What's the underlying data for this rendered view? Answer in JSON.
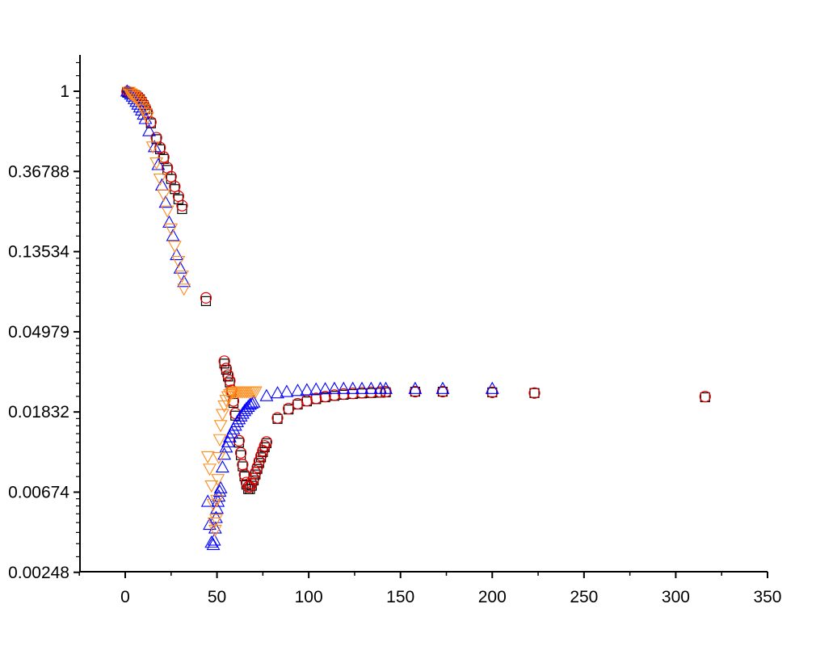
{
  "chart_data": {
    "type": "scatter",
    "xlim": [
      -25,
      350
    ],
    "ylim": [
      0.00248,
      1.8
    ],
    "yscale": "log-e",
    "grid": false,
    "x_ticks": [
      0,
      50,
      100,
      150,
      200,
      250,
      300,
      350
    ],
    "x_tick_labels": [
      "0",
      "50",
      "100",
      "150",
      "200",
      "250",
      "300",
      "350"
    ],
    "y_ticks": [
      0.00248,
      0.00674,
      0.01832,
      0.04979,
      0.13534,
      0.36788,
      1
    ],
    "y_tick_labels": [
      "0.00248",
      "0.00674",
      "0.01832",
      "0.04979",
      "0.13534",
      "0.36788",
      "1"
    ],
    "colors": {
      "black": "#000000",
      "red": "#e00000",
      "blue": "#0000ff",
      "orange": "#ff8c1a"
    },
    "series": [
      {
        "marker": "square",
        "color": "#000000",
        "x": [
          1,
          2,
          3,
          4,
          5,
          6,
          7,
          8,
          9,
          10,
          11,
          12,
          14,
          17,
          19,
          21,
          23,
          25,
          27,
          29,
          31,
          44,
          54,
          55,
          56,
          57,
          58,
          59,
          60,
          62,
          63,
          64,
          65,
          66,
          67,
          68,
          69,
          70,
          71,
          72,
          73,
          74,
          75,
          76,
          77,
          83,
          89,
          94,
          99,
          104,
          109,
          114,
          119,
          124,
          129,
          134,
          139,
          142,
          158,
          173,
          200,
          223,
          316
        ],
        "y": [
          0.99,
          0.985,
          0.975,
          0.965,
          0.955,
          0.945,
          0.925,
          0.905,
          0.875,
          0.84,
          0.8,
          0.76,
          0.67,
          0.55,
          0.485,
          0.43,
          0.375,
          0.335,
          0.295,
          0.26,
          0.23,
          0.073,
          0.0335,
          0.031,
          0.0285,
          0.0265,
          0.0235,
          0.0205,
          0.0175,
          0.0125,
          0.0107,
          0.0093,
          0.0082,
          0.0074,
          0.007,
          0.007,
          0.0073,
          0.0078,
          0.0084,
          0.009,
          0.0097,
          0.0104,
          0.0111,
          0.0118,
          0.0124,
          0.0168,
          0.0189,
          0.0201,
          0.0209,
          0.0215,
          0.022,
          0.0224,
          0.0227,
          0.0229,
          0.0231,
          0.0232,
          0.0233,
          0.0234,
          0.0236,
          0.0236,
          0.0234,
          0.0232,
          0.022
        ]
      },
      {
        "marker": "circle",
        "color": "#e00000",
        "x": [
          1,
          2,
          3,
          4,
          5,
          6,
          7,
          8,
          9,
          10,
          11,
          12,
          14,
          17,
          19,
          21,
          23,
          25,
          27,
          29,
          31,
          44,
          54,
          55,
          56,
          57,
          58,
          59,
          60,
          62,
          63,
          64,
          65,
          66,
          67,
          68,
          69,
          70,
          71,
          72,
          73,
          74,
          75,
          76,
          77,
          83,
          89,
          94,
          99,
          104,
          109,
          114,
          119,
          124,
          129,
          134,
          139,
          142,
          158,
          173,
          200,
          223,
          316
        ],
        "y": [
          0.995,
          0.99,
          0.98,
          0.97,
          0.96,
          0.95,
          0.93,
          0.91,
          0.88,
          0.85,
          0.81,
          0.77,
          0.68,
          0.56,
          0.495,
          0.44,
          0.385,
          0.345,
          0.305,
          0.27,
          0.24,
          0.076,
          0.0345,
          0.0315,
          0.029,
          0.027,
          0.024,
          0.021,
          0.018,
          0.0128,
          0.011,
          0.0095,
          0.0084,
          0.0076,
          0.0072,
          0.0072,
          0.0075,
          0.008,
          0.0086,
          0.0092,
          0.0099,
          0.0106,
          0.0113,
          0.012,
          0.0126,
          0.017,
          0.0191,
          0.0203,
          0.0211,
          0.0217,
          0.0222,
          0.0226,
          0.0229,
          0.0231,
          0.0233,
          0.0234,
          0.0235,
          0.0236,
          0.0236,
          0.0236,
          0.0234,
          0.0232,
          0.0222
        ]
      },
      {
        "marker": "triangle-up",
        "color": "#0000ff",
        "x": [
          1,
          2,
          3,
          4,
          5,
          6,
          7,
          8,
          9,
          10,
          11,
          13,
          16,
          18,
          20,
          22,
          24,
          26,
          28,
          30,
          32,
          45,
          46,
          47,
          48,
          48.5,
          49,
          49.5,
          50,
          50.5,
          51,
          51.5,
          52,
          53,
          54,
          55,
          56,
          57,
          58,
          59,
          60,
          61,
          62,
          63,
          64,
          65,
          66,
          67,
          68,
          69,
          70,
          77,
          83,
          88,
          94,
          99,
          104,
          109,
          114,
          119,
          124,
          129,
          134,
          139,
          142,
          158,
          173,
          200
        ],
        "y": [
          1.0,
          0.985,
          0.965,
          0.94,
          0.91,
          0.88,
          0.85,
          0.82,
          0.79,
          0.75,
          0.71,
          0.61,
          0.5,
          0.4,
          0.31,
          0.25,
          0.195,
          0.165,
          0.13,
          0.11,
          0.093,
          0.006,
          0.0045,
          0.0036,
          0.0035,
          0.0037,
          0.0043,
          0.0049,
          0.0055,
          0.006,
          0.0064,
          0.0068,
          0.0071,
          0.0092,
          0.0108,
          0.0118,
          0.0126,
          0.0134,
          0.0141,
          0.0148,
          0.0155,
          0.0162,
          0.0168,
          0.0174,
          0.018,
          0.0186,
          0.0191,
          0.0196,
          0.0201,
          0.0204,
          0.0207,
          0.0224,
          0.0232,
          0.0236,
          0.0239,
          0.0241,
          0.0243,
          0.0244,
          0.0245,
          0.0245,
          0.0245,
          0.0245,
          0.0245,
          0.0245,
          0.0245,
          0.0245,
          0.0245,
          0.0245
        ]
      },
      {
        "marker": "triangle-down",
        "color": "#ff8c1a",
        "x": [
          2,
          3,
          4,
          5,
          6,
          7,
          8,
          9,
          10,
          11,
          12,
          15,
          17,
          19,
          21,
          23,
          25,
          27,
          29,
          31,
          32,
          45,
          46,
          47,
          48,
          48.5,
          49,
          49.5,
          50,
          50.5,
          51,
          51.5,
          52,
          53,
          54,
          55,
          56,
          57,
          58,
          59,
          60,
          61,
          62,
          63,
          64,
          65,
          66,
          67,
          68,
          69,
          70,
          71
        ],
        "y": [
          0.99,
          0.97,
          0.955,
          0.935,
          0.91,
          0.885,
          0.86,
          0.83,
          0.8,
          0.76,
          0.72,
          0.5,
          0.41,
          0.335,
          0.275,
          0.225,
          0.18,
          0.145,
          0.12,
          0.1,
          0.085,
          0.0105,
          0.009,
          0.0073,
          0.0058,
          0.0046,
          0.0042,
          0.0048,
          0.0061,
          0.0079,
          0.0104,
          0.013,
          0.0155,
          0.0178,
          0.0198,
          0.0212,
          0.0222,
          0.0228,
          0.0232,
          0.0234,
          0.0235,
          0.0236,
          0.0236,
          0.0236,
          0.0236,
          0.0236,
          0.0236,
          0.0236,
          0.0236,
          0.0236,
          0.0236,
          0.0236
        ]
      }
    ]
  }
}
